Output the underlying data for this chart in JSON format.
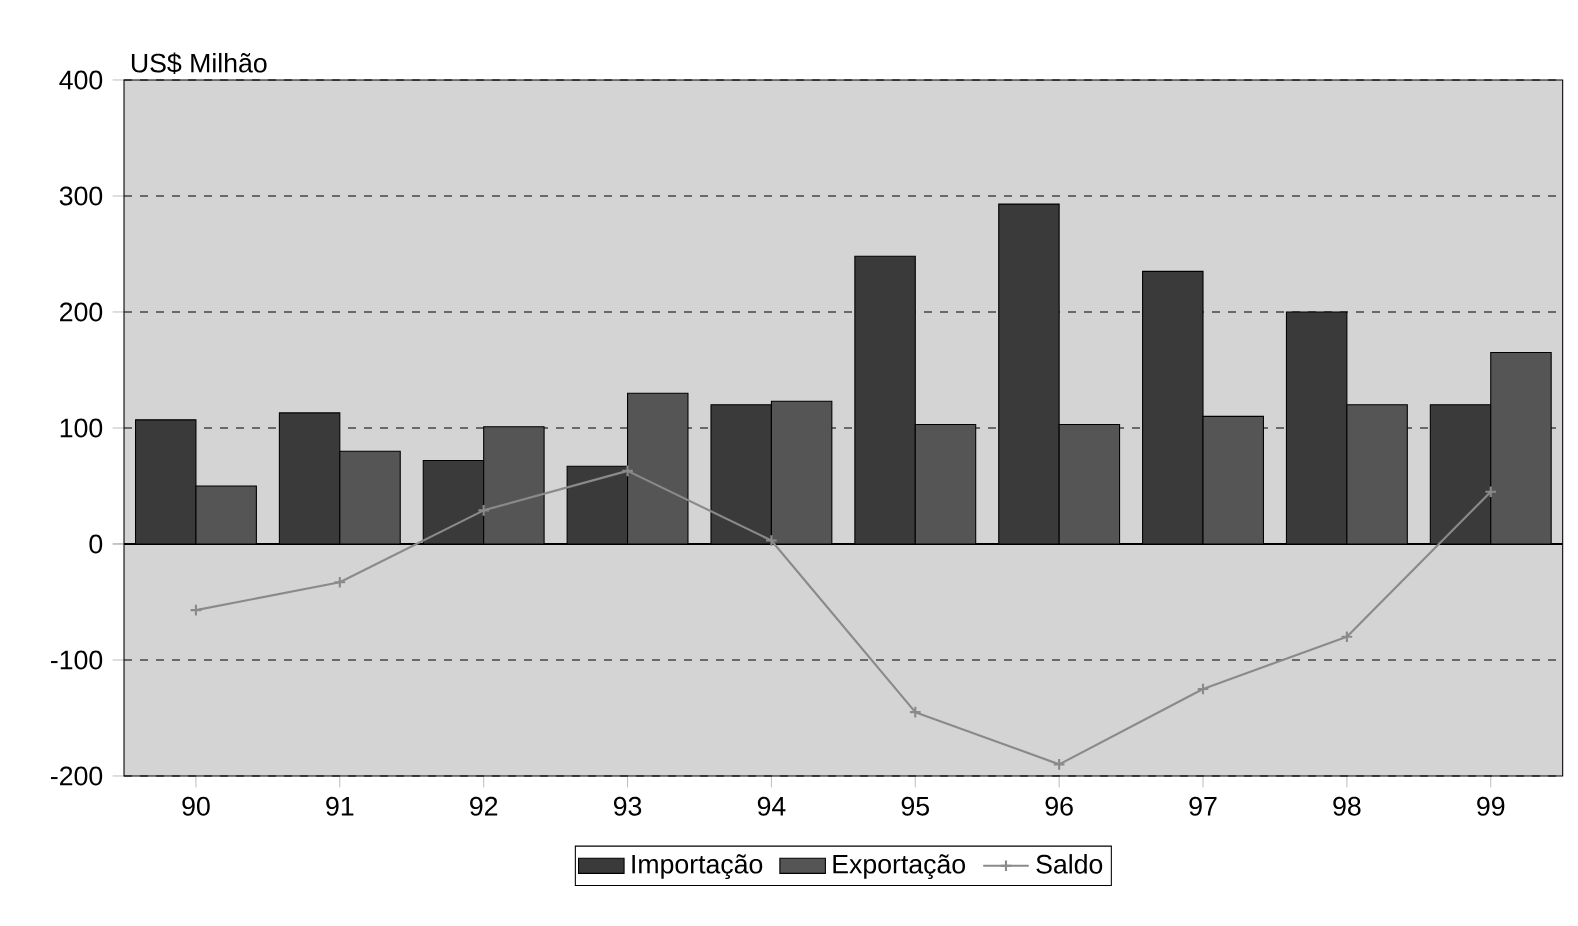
{
  "chart_data": {
    "type": "bar",
    "ylabel": "US$ Milhão",
    "categories": [
      "90",
      "91",
      "92",
      "93",
      "94",
      "95",
      "96",
      "97",
      "98",
      "99"
    ],
    "series": [
      {
        "name": "Importação",
        "color": "#3a3a3a",
        "values": [
          107,
          113,
          72,
          67,
          120,
          248,
          293,
          235,
          200,
          120
        ]
      },
      {
        "name": "Exportação",
        "color": "#555555",
        "values": [
          50,
          80,
          101,
          130,
          123,
          103,
          103,
          110,
          120,
          165
        ]
      },
      {
        "name": "Saldo",
        "type": "line",
        "color": "#8a8a8a",
        "marker": "cross",
        "values": [
          -57,
          -33,
          29,
          63,
          3,
          -145,
          -190,
          -125,
          -80,
          45
        ]
      }
    ],
    "ylim": [
      -200,
      400
    ],
    "yticks": [
      -200,
      -100,
      0,
      100,
      200,
      300,
      400
    ],
    "grid": "y",
    "legend": "bottom"
  }
}
